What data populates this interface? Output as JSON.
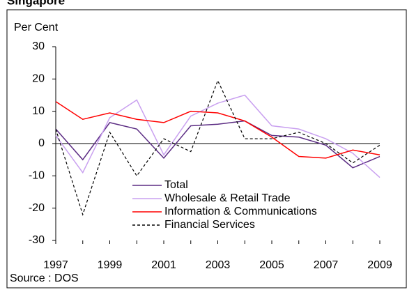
{
  "chart_data": {
    "type": "line",
    "title": "Singapore",
    "y_label": "Per Cent",
    "source": "Source : DOS",
    "x": [
      1997,
      1998,
      1999,
      2000,
      2001,
      2002,
      2003,
      2004,
      2005,
      2006,
      2007,
      2008,
      2009
    ],
    "xlim": [
      1997,
      2009
    ],
    "xticks": [
      1997,
      1999,
      2001,
      2003,
      2005,
      2007,
      2009
    ],
    "ylim": [
      -30,
      30
    ],
    "yticks": [
      -30,
      -20,
      -10,
      0,
      10,
      20,
      30
    ],
    "series": [
      {
        "name": "Total",
        "color": "#5b2c83",
        "dashed": false,
        "values": [
          4.5,
          -5,
          6.5,
          4.5,
          -4.5,
          5.5,
          6,
          7,
          2.5,
          2,
          -0.5,
          -7.5,
          -4
        ]
      },
      {
        "name": "Wholesale & Retail Trade",
        "color": "#c9a0f0",
        "dashed": false,
        "values": [
          2.5,
          -9,
          8,
          13.5,
          -3.5,
          8.5,
          12.5,
          15,
          5.5,
          4.5,
          1.5,
          -3,
          -10.5
        ]
      },
      {
        "name": "Information & Communications",
        "color": "#ff0000",
        "dashed": false,
        "values": [
          13,
          7.5,
          9.5,
          7.5,
          6.5,
          10,
          9.5,
          7,
          2,
          -4,
          -4.5,
          -2,
          -3.5
        ]
      },
      {
        "name": "Financial Services",
        "color": "#000000",
        "dashed": true,
        "values": [
          4.5,
          -22,
          3.5,
          -10,
          1.5,
          -2.5,
          19.5,
          1.5,
          1.5,
          3.5,
          0,
          -6,
          -0.5
        ]
      }
    ]
  }
}
